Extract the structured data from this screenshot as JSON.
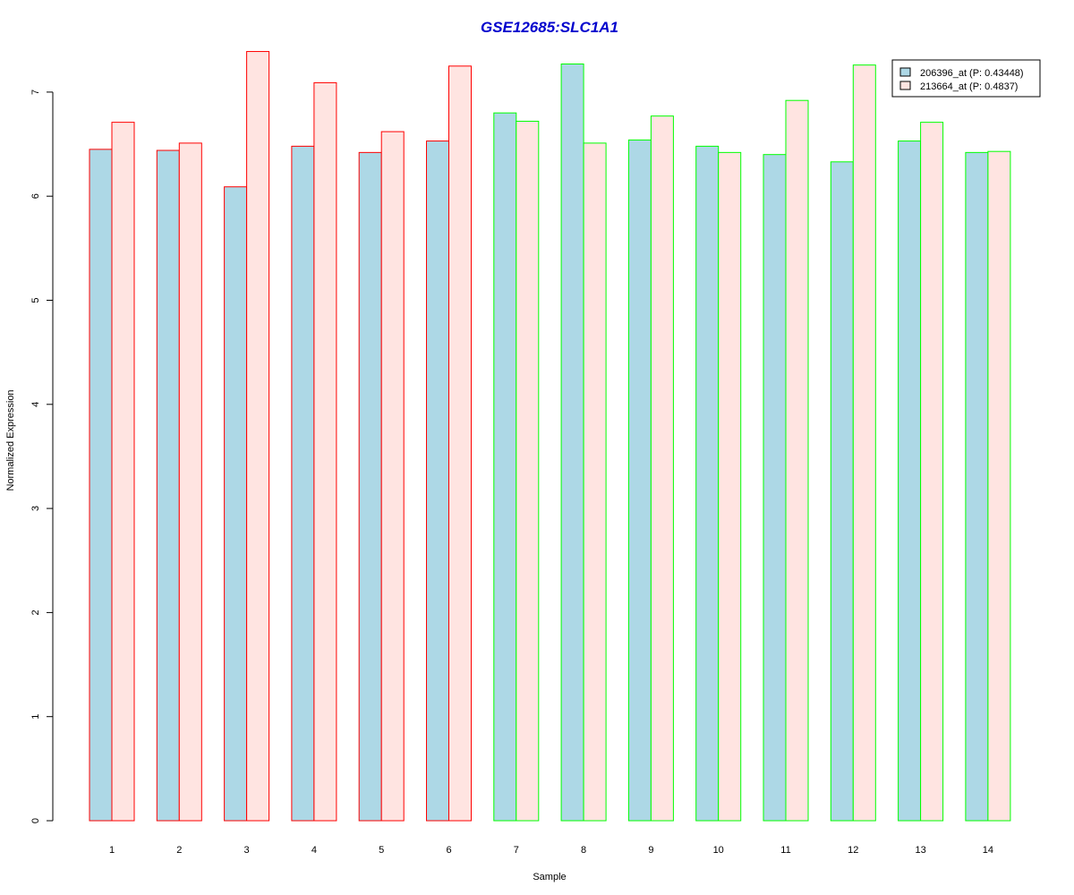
{
  "chart_data": {
    "type": "bar",
    "title": "GSE12685:SLC1A1",
    "xlabel": "Sample",
    "ylabel": "Normalized Expression",
    "categories": [
      "1",
      "2",
      "3",
      "4",
      "5",
      "6",
      "7",
      "8",
      "9",
      "10",
      "11",
      "12",
      "13",
      "14"
    ],
    "yticks": [
      "0",
      "1",
      "2",
      "3",
      "4",
      "5",
      "6",
      "7"
    ],
    "ylim": [
      0,
      7.4
    ],
    "grid": false,
    "legend_position": "top-right",
    "group_border_colors": [
      "#ff0000",
      "#ff0000",
      "#ff0000",
      "#ff0000",
      "#ff0000",
      "#ff0000",
      "#00ff00",
      "#00ff00",
      "#00ff00",
      "#00ff00",
      "#00ff00",
      "#00ff00",
      "#00ff00",
      "#00ff00"
    ],
    "series": [
      {
        "name": "206396_at (P: 0.43448)",
        "color": "#add8e6",
        "values": [
          6.45,
          6.44,
          6.09,
          6.48,
          6.42,
          6.53,
          6.8,
          7.27,
          6.54,
          6.48,
          6.4,
          6.33,
          6.53,
          6.42
        ]
      },
      {
        "name": "213664_at (P: 0.4837)",
        "color": "#ffe4e1",
        "values": [
          6.71,
          6.51,
          7.39,
          7.09,
          6.62,
          7.25,
          6.72,
          6.51,
          6.77,
          6.42,
          6.92,
          7.26,
          6.71,
          6.43
        ]
      }
    ],
    "title_color": "#0000cd"
  }
}
